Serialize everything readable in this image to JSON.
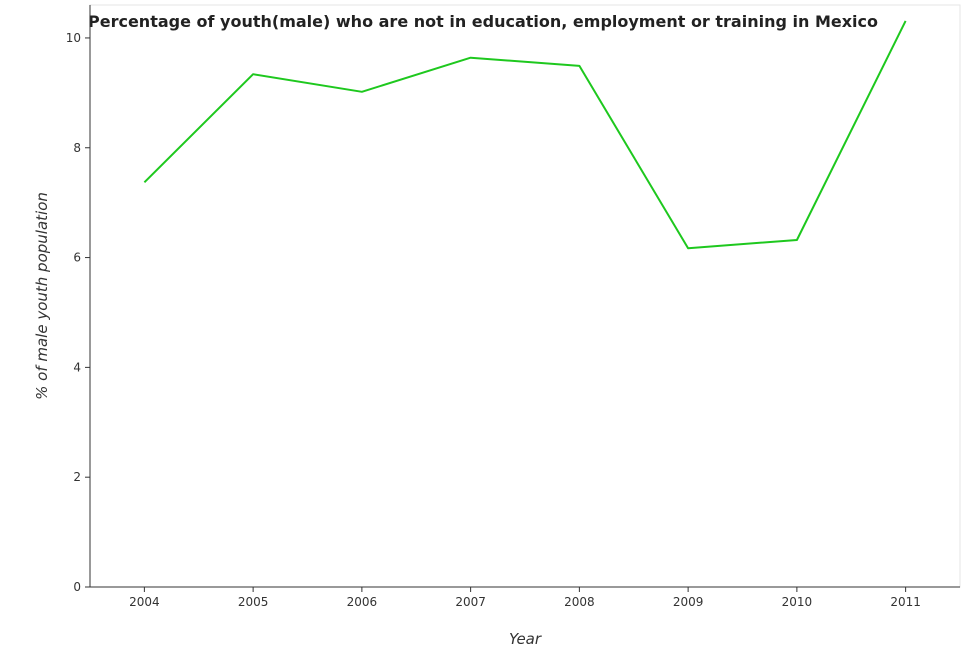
{
  "chart_data": {
    "type": "line",
    "title": "Percentage of youth(male) who are not in education, employment or training in Mexico",
    "xlabel": "Year",
    "ylabel": "% of male youth population",
    "categories": [
      "2004",
      "2005",
      "2006",
      "2007",
      "2008",
      "2009",
      "2010",
      "2011"
    ],
    "series": [
      {
        "values": [
          7.37,
          9.34,
          9.02,
          9.64,
          9.49,
          6.17,
          6.32,
          10.31
        ],
        "color": "#1ec81e"
      }
    ],
    "y_ticks": [
      "0",
      "2",
      "4",
      "6",
      "8",
      "10"
    ],
    "ylim": [
      0,
      10.6
    ],
    "grid": false,
    "legend": "none"
  }
}
